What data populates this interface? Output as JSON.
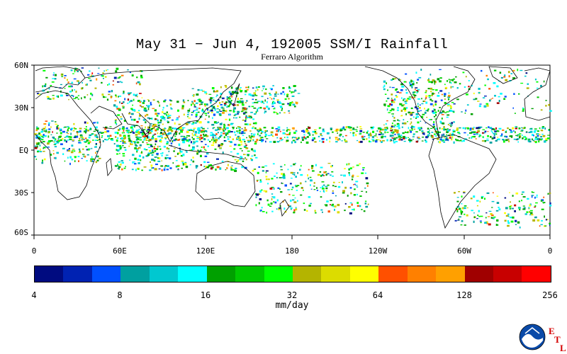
{
  "header": {
    "title": "May 31 − Jun 4, 192005 SSM/I Rainfall",
    "subtitle": "Ferraro Algorithm"
  },
  "map": {
    "lat_labels": [
      "60N",
      "30N",
      "EQ",
      "30S",
      "60S"
    ],
    "lon_labels": [
      "0",
      "60E",
      "120E",
      "180",
      "120W",
      "60W",
      "0"
    ],
    "background": "#ffffff"
  },
  "colorbar": {
    "colors": [
      "#000b80",
      "#0022b2",
      "#0050ff",
      "#00a0a0",
      "#00c8d0",
      "#00ffff",
      "#00a000",
      "#00c800",
      "#00ff00",
      "#b4b400",
      "#dcdc00",
      "#ffff00",
      "#ff5000",
      "#ff8000",
      "#ffa000",
      "#a00000",
      "#c80000",
      "#ff0000"
    ],
    "tick_labels": [
      "4",
      "8",
      "16",
      "32",
      "64",
      "128",
      "256"
    ],
    "units": "mm/day"
  },
  "logo": {
    "icon": "noaa-logo",
    "letters": [
      "E",
      "T",
      "L"
    ],
    "letter_color": "#d40000"
  }
}
